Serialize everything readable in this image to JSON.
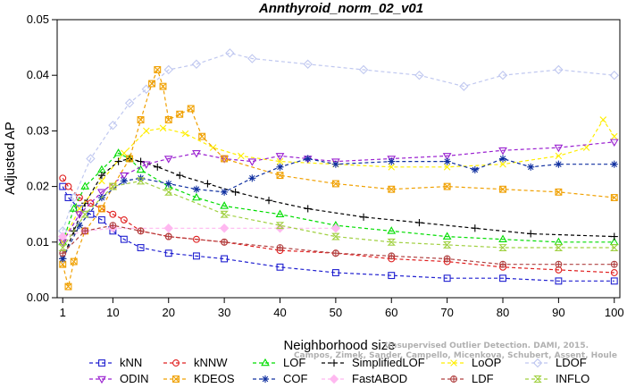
{
  "chart_data": {
    "type": "line",
    "title": "Annthyroid_norm_02_v01",
    "xlabel": "Neighborhood size",
    "ylabel": "Adjusted AP",
    "xlim": [
      0,
      101
    ],
    "ylim": [
      0,
      0.05
    ],
    "xticks": [
      1,
      10,
      20,
      30,
      40,
      50,
      60,
      70,
      80,
      90,
      100
    ],
    "yticks": [
      "0.00",
      "0.01",
      "0.02",
      "0.03",
      "0.04",
      "0.05"
    ],
    "citation": [
      "Campos, Zimek, Sander, Campello, Micenkova, Schubert, Assent, Houle",
      "Unsupervised Outlier Detection. DAMI, 2015."
    ],
    "legend_position": "bottom",
    "series": [
      {
        "name": "kNN",
        "color": "#1f1fd0",
        "marker": "square",
        "points": [
          [
            1,
            0.02
          ],
          [
            2,
            0.018
          ],
          [
            4,
            0.016
          ],
          [
            6,
            0.015
          ],
          [
            8,
            0.014
          ],
          [
            10,
            0.012
          ],
          [
            12,
            0.0105
          ],
          [
            15,
            0.009
          ],
          [
            20,
            0.008
          ],
          [
            25,
            0.0075
          ],
          [
            30,
            0.007
          ],
          [
            40,
            0.0055
          ],
          [
            50,
            0.0045
          ],
          [
            60,
            0.004
          ],
          [
            70,
            0.0035
          ],
          [
            80,
            0.0035
          ],
          [
            90,
            0.003
          ],
          [
            100,
            0.003
          ]
        ]
      },
      {
        "name": "kNNW",
        "color": "#e02020",
        "marker": "circle",
        "points": [
          [
            1,
            0.0215
          ],
          [
            2,
            0.02
          ],
          [
            4,
            0.018
          ],
          [
            6,
            0.017
          ],
          [
            8,
            0.016
          ],
          [
            10,
            0.015
          ],
          [
            12,
            0.014
          ],
          [
            15,
            0.012
          ],
          [
            20,
            0.011
          ],
          [
            25,
            0.0105
          ],
          [
            30,
            0.01
          ],
          [
            40,
            0.0085
          ],
          [
            50,
            0.008
          ],
          [
            60,
            0.007
          ],
          [
            70,
            0.0065
          ],
          [
            80,
            0.0055
          ],
          [
            90,
            0.005
          ],
          [
            100,
            0.0045
          ]
        ]
      },
      {
        "name": "LOF",
        "color": "#00dd00",
        "marker": "triangle",
        "points": [
          [
            1,
            0.01
          ],
          [
            3,
            0.016
          ],
          [
            5,
            0.02
          ],
          [
            8,
            0.023
          ],
          [
            11,
            0.026
          ],
          [
            13,
            0.025
          ],
          [
            15,
            0.023
          ],
          [
            20,
            0.02
          ],
          [
            25,
            0.018
          ],
          [
            30,
            0.0165
          ],
          [
            40,
            0.015
          ],
          [
            50,
            0.013
          ],
          [
            60,
            0.012
          ],
          [
            70,
            0.011
          ],
          [
            80,
            0.0105
          ],
          [
            90,
            0.01
          ],
          [
            100,
            0.01
          ]
        ]
      },
      {
        "name": "SimplifiedLOF",
        "color": "#000000",
        "marker": "plus",
        "points": [
          [
            1,
            0.007
          ],
          [
            3,
            0.012
          ],
          [
            5,
            0.017
          ],
          [
            8,
            0.022
          ],
          [
            11,
            0.0245
          ],
          [
            13,
            0.025
          ],
          [
            15,
            0.0245
          ],
          [
            18,
            0.0235
          ],
          [
            22,
            0.022
          ],
          [
            27,
            0.0205
          ],
          [
            32,
            0.019
          ],
          [
            38,
            0.0175
          ],
          [
            45,
            0.016
          ],
          [
            55,
            0.0145
          ],
          [
            65,
            0.0135
          ],
          [
            75,
            0.0125
          ],
          [
            85,
            0.0115
          ],
          [
            100,
            0.011
          ]
        ]
      },
      {
        "name": "LoOP",
        "color": "#ffee00",
        "marker": "x",
        "points": [
          [
            1,
            0.01
          ],
          [
            4,
            0.016
          ],
          [
            8,
            0.021
          ],
          [
            12,
            0.026
          ],
          [
            16,
            0.03
          ],
          [
            19,
            0.0305
          ],
          [
            23,
            0.0295
          ],
          [
            28,
            0.027
          ],
          [
            33,
            0.0255
          ],
          [
            40,
            0.0245
          ],
          [
            50,
            0.024
          ],
          [
            60,
            0.0235
          ],
          [
            70,
            0.0235
          ],
          [
            80,
            0.024
          ],
          [
            90,
            0.0255
          ],
          [
            95,
            0.027
          ],
          [
            98,
            0.032
          ],
          [
            100,
            0.029
          ]
        ]
      },
      {
        "name": "LDOF",
        "color": "#c0c8f0",
        "marker": "diamond",
        "points": [
          [
            1,
            0.012
          ],
          [
            3,
            0.018
          ],
          [
            6,
            0.025
          ],
          [
            10,
            0.031
          ],
          [
            13,
            0.035
          ],
          [
            16,
            0.0375
          ],
          [
            20,
            0.041
          ],
          [
            25,
            0.042
          ],
          [
            31,
            0.044
          ],
          [
            35,
            0.043
          ],
          [
            45,
            0.042
          ],
          [
            55,
            0.041
          ],
          [
            65,
            0.04
          ],
          [
            73,
            0.038
          ],
          [
            80,
            0.04
          ],
          [
            90,
            0.041
          ],
          [
            100,
            0.04
          ]
        ]
      },
      {
        "name": "ODIN",
        "color": "#9a20d0",
        "marker": "triangle-down",
        "points": [
          [
            1,
            0.01
          ],
          [
            4,
            0.015
          ],
          [
            8,
            0.019
          ],
          [
            12,
            0.022
          ],
          [
            16,
            0.024
          ],
          [
            20,
            0.025
          ],
          [
            25,
            0.026
          ],
          [
            30,
            0.025
          ],
          [
            35,
            0.0245
          ],
          [
            40,
            0.0255
          ],
          [
            45,
            0.025
          ],
          [
            50,
            0.0245
          ],
          [
            60,
            0.025
          ],
          [
            70,
            0.0255
          ],
          [
            80,
            0.0265
          ],
          [
            90,
            0.027
          ],
          [
            100,
            0.028
          ]
        ]
      },
      {
        "name": "KDEOS",
        "color": "#f0a000",
        "marker": "square-x",
        "points": [
          [
            1,
            0.006
          ],
          [
            2,
            0.002
          ],
          [
            3,
            0.0065
          ],
          [
            5,
            0.012
          ],
          [
            8,
            0.016
          ],
          [
            10,
            0.02
          ],
          [
            13,
            0.025
          ],
          [
            15,
            0.032
          ],
          [
            17,
            0.0385
          ],
          [
            18,
            0.041
          ],
          [
            19,
            0.038
          ],
          [
            20,
            0.032
          ],
          [
            22,
            0.033
          ],
          [
            24,
            0.034
          ],
          [
            26,
            0.029
          ],
          [
            30,
            0.025
          ],
          [
            40,
            0.022
          ],
          [
            50,
            0.0205
          ],
          [
            60,
            0.0195
          ],
          [
            70,
            0.02
          ],
          [
            80,
            0.0195
          ],
          [
            90,
            0.019
          ],
          [
            100,
            0.018
          ]
        ]
      },
      {
        "name": "COF",
        "color": "#1030a0",
        "marker": "star",
        "points": [
          [
            1,
            0.007
          ],
          [
            4,
            0.013
          ],
          [
            8,
            0.018
          ],
          [
            12,
            0.021
          ],
          [
            15,
            0.0215
          ],
          [
            20,
            0.0205
          ],
          [
            25,
            0.0195
          ],
          [
            30,
            0.019
          ],
          [
            35,
            0.0215
          ],
          [
            40,
            0.0235
          ],
          [
            45,
            0.025
          ],
          [
            50,
            0.024
          ],
          [
            60,
            0.0245
          ],
          [
            70,
            0.0245
          ],
          [
            75,
            0.023
          ],
          [
            80,
            0.025
          ],
          [
            85,
            0.0235
          ],
          [
            90,
            0.024
          ],
          [
            100,
            0.024
          ]
        ]
      },
      {
        "name": "FastABOD",
        "color": "#ffb8f0",
        "marker": "diamond-filled",
        "points": [
          [
            1,
            0.011
          ],
          [
            5,
            0.012
          ],
          [
            10,
            0.0125
          ],
          [
            20,
            0.0125
          ],
          [
            30,
            0.0125
          ],
          [
            40,
            0.0125
          ],
          [
            50,
            0.0125
          ]
        ]
      },
      {
        "name": "LDF",
        "color": "#b04040",
        "marker": "circle-plus",
        "points": [
          [
            1,
            0.008
          ],
          [
            5,
            0.012
          ],
          [
            10,
            0.013
          ],
          [
            15,
            0.012
          ],
          [
            20,
            0.011
          ],
          [
            30,
            0.01
          ],
          [
            40,
            0.009
          ],
          [
            50,
            0.008
          ],
          [
            60,
            0.0075
          ],
          [
            70,
            0.007
          ],
          [
            80,
            0.006
          ],
          [
            90,
            0.006
          ],
          [
            100,
            0.006
          ]
        ]
      },
      {
        "name": "INFLO",
        "color": "#a0d040",
        "marker": "hourglass",
        "points": [
          [
            1,
            0.009
          ],
          [
            5,
            0.015
          ],
          [
            10,
            0.02
          ],
          [
            15,
            0.021
          ],
          [
            20,
            0.019
          ],
          [
            30,
            0.015
          ],
          [
            40,
            0.013
          ],
          [
            50,
            0.011
          ],
          [
            60,
            0.01
          ],
          [
            70,
            0.0095
          ],
          [
            80,
            0.009
          ],
          [
            90,
            0.009
          ],
          [
            100,
            0.009
          ]
        ]
      }
    ]
  }
}
